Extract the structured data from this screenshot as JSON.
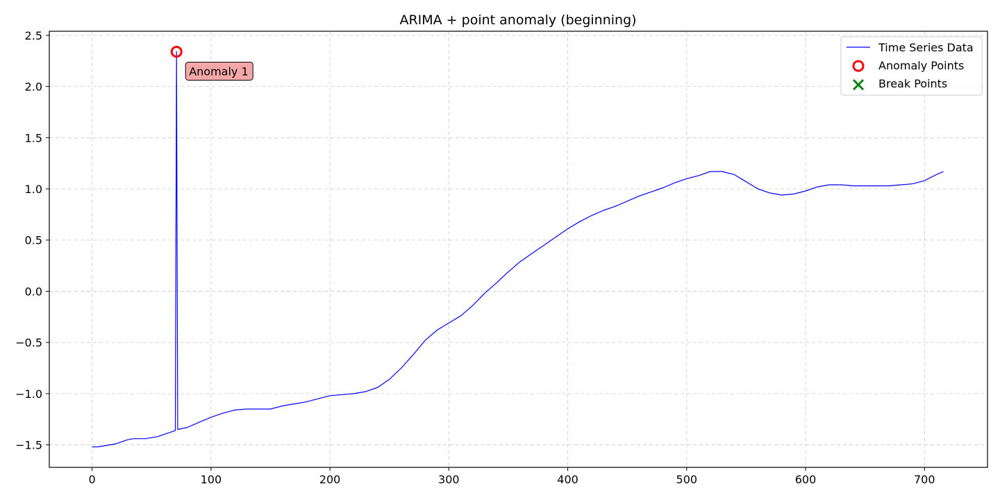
{
  "chart_data": {
    "type": "line",
    "title": "ARIMA + point anomaly (beginning)",
    "xlabel": "",
    "ylabel": "",
    "xlim": [
      -36,
      753
    ],
    "ylim": [
      -1.72,
      2.54
    ],
    "xticks": [
      0,
      100,
      200,
      300,
      400,
      500,
      600,
      700
    ],
    "xtick_labels": [
      "0",
      "100",
      "200",
      "300",
      "400",
      "500",
      "600",
      "700"
    ],
    "yticks": [
      -1.5,
      -1.0,
      -0.5,
      0.0,
      0.5,
      1.0,
      1.5,
      2.0,
      2.5
    ],
    "ytick_labels": [
      "−1.5",
      "−1.0",
      "−0.5",
      "0.0",
      "0.5",
      "1.0",
      "1.5",
      "2.0",
      "2.5"
    ],
    "grid": true,
    "legend_position": "top-right",
    "series": [
      {
        "name": "Time Series Data",
        "color": "#0000ff",
        "x": [
          0,
          5,
          10,
          20,
          25,
          30,
          35,
          40,
          45,
          50,
          55,
          60,
          65,
          70,
          71,
          72,
          80,
          90,
          100,
          110,
          120,
          130,
          140,
          150,
          160,
          170,
          180,
          190,
          200,
          210,
          220,
          230,
          240,
          250,
          260,
          270,
          280,
          290,
          300,
          310,
          320,
          330,
          340,
          350,
          360,
          370,
          380,
          390,
          400,
          410,
          420,
          430,
          440,
          450,
          460,
          470,
          480,
          490,
          500,
          510,
          520,
          525,
          530,
          540,
          550,
          560,
          570,
          580,
          590,
          600,
          610,
          620,
          630,
          640,
          650,
          660,
          670,
          680,
          690,
          700,
          710,
          716
        ],
        "y": [
          -1.52,
          -1.52,
          -1.51,
          -1.49,
          -1.47,
          -1.45,
          -1.44,
          -1.44,
          -1.44,
          -1.43,
          -1.42,
          -1.4,
          -1.38,
          -1.36,
          2.34,
          -1.35,
          -1.33,
          -1.28,
          -1.23,
          -1.19,
          -1.16,
          -1.15,
          -1.15,
          -1.15,
          -1.12,
          -1.1,
          -1.08,
          -1.05,
          -1.02,
          -1.01,
          -1.0,
          -0.98,
          -0.94,
          -0.86,
          -0.75,
          -0.62,
          -0.48,
          -0.38,
          -0.31,
          -0.24,
          -0.14,
          -0.02,
          0.08,
          0.19,
          0.29,
          0.37,
          0.45,
          0.53,
          0.61,
          0.68,
          0.74,
          0.79,
          0.83,
          0.88,
          0.93,
          0.97,
          1.01,
          1.06,
          1.1,
          1.13,
          1.17,
          1.17,
          1.17,
          1.14,
          1.07,
          1.0,
          0.96,
          0.94,
          0.95,
          0.98,
          1.02,
          1.04,
          1.04,
          1.03,
          1.03,
          1.03,
          1.03,
          1.04,
          1.05,
          1.08,
          1.14,
          1.17
        ]
      }
    ],
    "anomaly_points": {
      "name": "Anomaly Points",
      "color": "#ff0000",
      "points": [
        {
          "x": 71,
          "y": 2.34
        }
      ]
    },
    "break_points": {
      "name": "Break Points",
      "color": "#008000",
      "points": []
    },
    "annotations": [
      {
        "text": "Anomaly 1",
        "x": 71,
        "y": 2.34,
        "bg_color": "#f4a7a7"
      }
    ]
  }
}
